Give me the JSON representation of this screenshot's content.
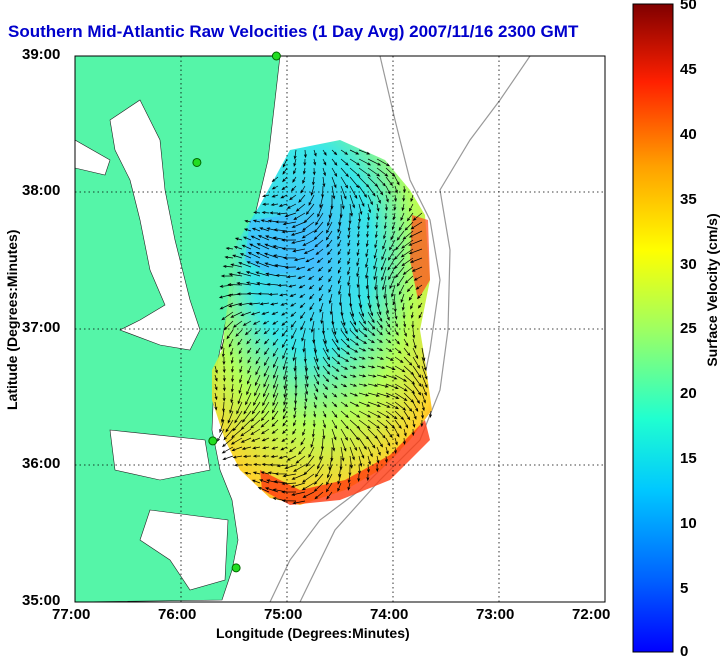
{
  "title": "Southern Mid-Atlantic Raw Velocities (1 Day Avg) 2007/11/16 2300 GMT",
  "map": {
    "xlabel": "Longitude (Degrees:Minutes)",
    "ylabel": "Latitude (Degrees:Minutes)",
    "x_ticks": [
      "77:00",
      "76:00",
      "75:00",
      "74:00",
      "73:00",
      "72:00"
    ],
    "y_ticks": [
      "39:00",
      "38:00",
      "37:00",
      "36:00",
      "35:00"
    ],
    "lon_range": [
      -77,
      -72
    ],
    "lat_range": [
      35,
      39
    ],
    "grid": true,
    "land_color": "#55f5a8",
    "stations": [
      {
        "name": "station-north",
        "lon": -75.1,
        "lat": 39.0
      },
      {
        "name": "station-mid",
        "lon": -75.85,
        "lat": 38.22
      },
      {
        "name": "station-south-1",
        "lon": -75.7,
        "lat": 36.18
      },
      {
        "name": "station-south-2",
        "lon": -75.48,
        "lat": 35.25
      }
    ]
  },
  "colorbar": {
    "label": "Surface Velocity (cm/s)",
    "ticks": [
      "50",
      "45",
      "40",
      "35",
      "30",
      "25",
      "20",
      "15",
      "10",
      "5",
      "0"
    ],
    "range": [
      0,
      50
    ],
    "colormap": "jet"
  }
}
